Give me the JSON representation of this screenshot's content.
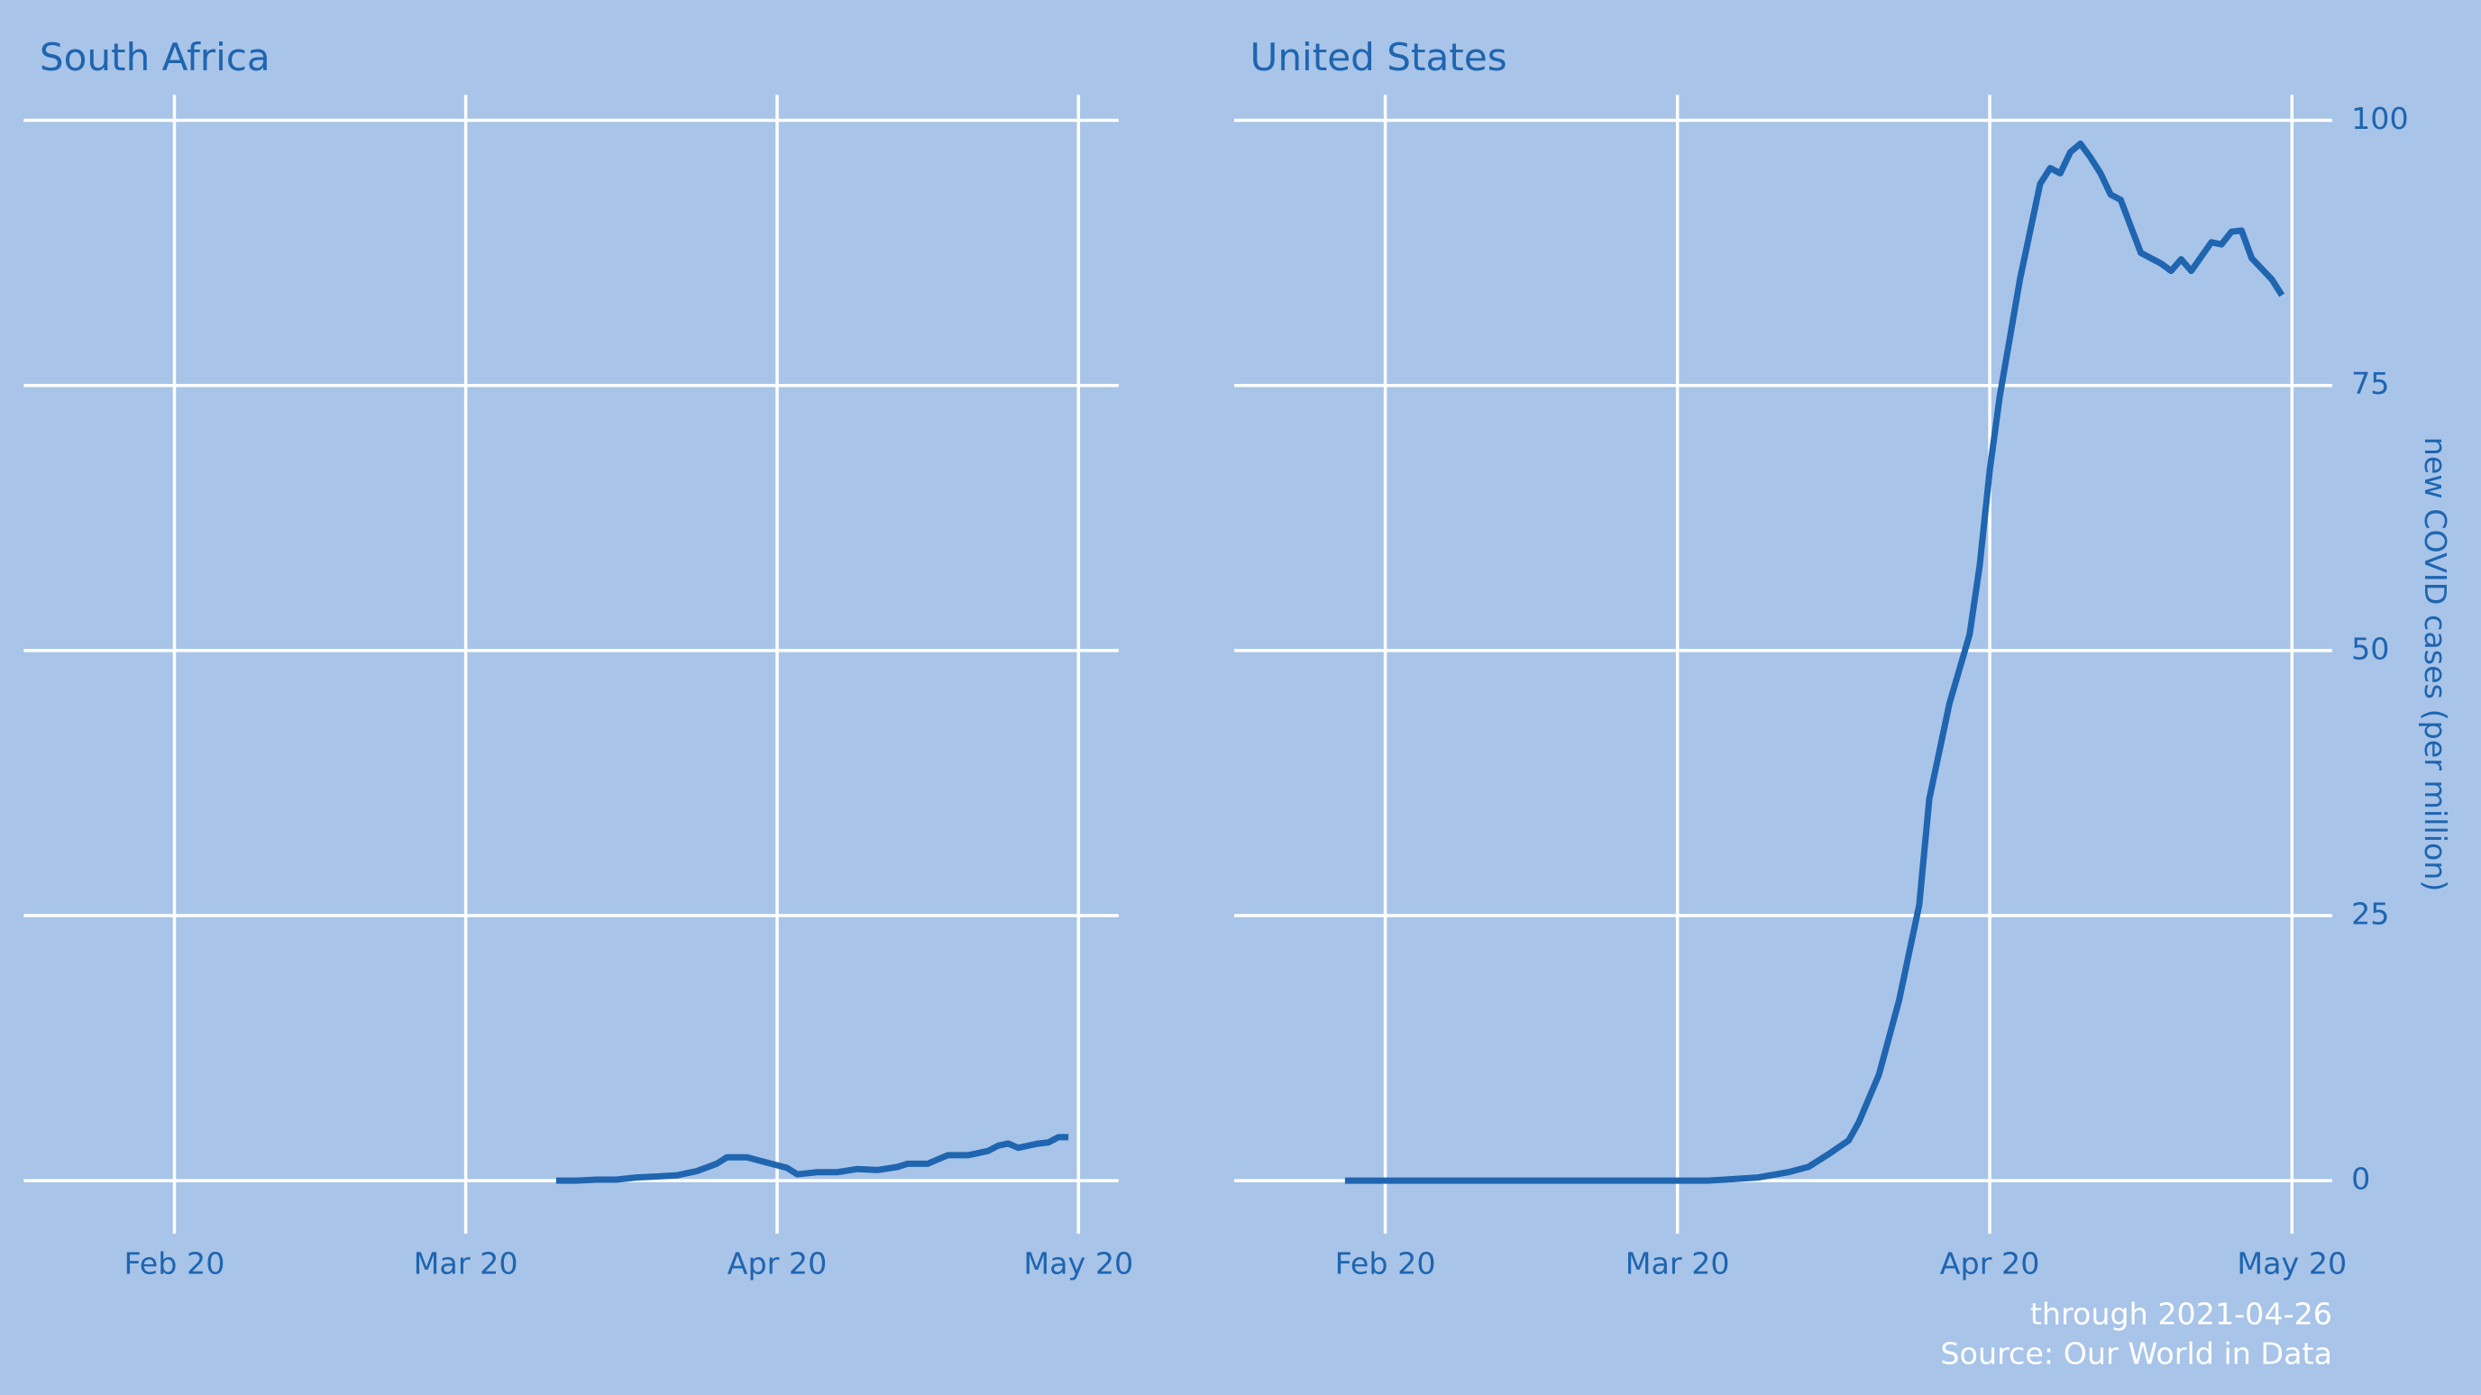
{
  "chart_data": [
    {
      "type": "line",
      "title": "South Africa",
      "color": "#1f65b0",
      "x": [
        70,
        72,
        74,
        76,
        78,
        80,
        82,
        84,
        86,
        87,
        89,
        91,
        93,
        94,
        96,
        98,
        100,
        102,
        104,
        105,
        107,
        109,
        111,
        113,
        114,
        115,
        116,
        118,
        119,
        120,
        121
      ],
      "values": [
        0,
        0,
        0.1,
        0.1,
        0.3,
        0.4,
        0.5,
        0.9,
        1.6,
        2.2,
        2.2,
        1.7,
        1.2,
        0.6,
        0.8,
        0.8,
        1.1,
        1.0,
        1.3,
        1.6,
        1.6,
        2.4,
        2.4,
        2.8,
        3.3,
        3.5,
        3.1,
        3.5,
        3.6,
        4.1,
        4.1
      ],
      "xlim": [
        17,
        126
      ],
      "xticks": [
        {
          "value": 32,
          "label": "Feb 20"
        },
        {
          "value": 61,
          "label": "Mar 20"
        },
        {
          "value": 92,
          "label": "Apr 20"
        },
        {
          "value": 122,
          "label": "May 20"
        }
      ],
      "ylim": [
        -5,
        102.4
      ],
      "yticks": [
        0,
        25,
        50,
        75,
        100
      ],
      "y_tick_labels": false,
      "grid": true
    },
    {
      "type": "line",
      "title": "United States",
      "color": "#1f65b0",
      "ylabel": "new COVID cases (per million)",
      "x": [
        28,
        64,
        69,
        72,
        74,
        76,
        78,
        79,
        81,
        83,
        85,
        86,
        88,
        90,
        91,
        92,
        93,
        95,
        97,
        98,
        99,
        100,
        101,
        102,
        103,
        104,
        105,
        107,
        109,
        110,
        111,
        112,
        114,
        115,
        116,
        117,
        118,
        119,
        120,
        121
      ],
      "values": [
        0,
        0,
        0.3,
        0.8,
        1.3,
        2.5,
        3.8,
        5.5,
        10,
        17,
        26,
        36,
        45,
        51.5,
        58,
        67,
        74,
        85,
        94,
        95.5,
        95,
        97,
        97.8,
        96.5,
        95,
        93,
        92.5,
        87.5,
        86.5,
        85.8,
        86.9,
        85.8,
        88.5,
        88.3,
        89.5,
        89.6,
        87,
        86,
        85,
        83.5
      ],
      "xlim": [
        17,
        126
      ],
      "xticks": [
        {
          "value": 32,
          "label": "Feb 20"
        },
        {
          "value": 61,
          "label": "Mar 20"
        },
        {
          "value": 92,
          "label": "Apr 20"
        },
        {
          "value": 122,
          "label": "May 20"
        }
      ],
      "ylim": [
        -5,
        102.4
      ],
      "yticks": [
        0,
        25,
        50,
        75,
        100
      ],
      "y_tick_labels": true,
      "grid": true
    }
  ],
  "caption": [
    "through 2021-04-26",
    "Source: Our World in Data"
  ]
}
